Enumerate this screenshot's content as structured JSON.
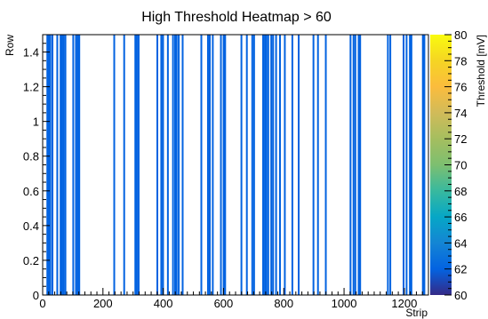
{
  "chart_data": {
    "type": "heatmap",
    "title": "High Threshold Heatmap > 60",
    "xlabel": "Strip",
    "ylabel": "Row",
    "zlabel": "Threshold [mV]",
    "xlim": [
      0,
      1280
    ],
    "ylim": [
      0,
      1.5
    ],
    "zlim": [
      60,
      80
    ],
    "x_ticks": [
      0,
      200,
      400,
      600,
      800,
      1000,
      1200
    ],
    "y_ticks": [
      0,
      0.2,
      0.4,
      0.6,
      0.8,
      1,
      1.2,
      1.4
    ],
    "z_ticks": [
      60,
      62,
      64,
      66,
      68,
      70,
      72,
      74,
      76,
      78,
      80
    ],
    "row_range": [
      0,
      1.5
    ],
    "cells": [
      {
        "strip": 14,
        "value": 62
      },
      {
        "strip": 19,
        "value": 62
      },
      {
        "strip": 24,
        "value": 62
      },
      {
        "strip": 31,
        "value": 62
      },
      {
        "strip": 47,
        "value": 62
      },
      {
        "strip": 58,
        "value": 62
      },
      {
        "strip": 63,
        "value": 62
      },
      {
        "strip": 68,
        "value": 62
      },
      {
        "strip": 74,
        "value": 62
      },
      {
        "strip": 100,
        "value": 62
      },
      {
        "strip": 109,
        "value": 62
      },
      {
        "strip": 115,
        "value": 62
      },
      {
        "strip": 120,
        "value": 62
      },
      {
        "strip": 236,
        "value": 62
      },
      {
        "strip": 269,
        "value": 62
      },
      {
        "strip": 306,
        "value": 62
      },
      {
        "strip": 311,
        "value": 62
      },
      {
        "strip": 317,
        "value": 62
      },
      {
        "strip": 379,
        "value": 62
      },
      {
        "strip": 392,
        "value": 62
      },
      {
        "strip": 398,
        "value": 62
      },
      {
        "strip": 414,
        "value": 62
      },
      {
        "strip": 431,
        "value": 62
      },
      {
        "strip": 438,
        "value": 62
      },
      {
        "strip": 443,
        "value": 62
      },
      {
        "strip": 450,
        "value": 62
      },
      {
        "strip": 463,
        "value": 62
      },
      {
        "strip": 525,
        "value": 62
      },
      {
        "strip": 547,
        "value": 62
      },
      {
        "strip": 553,
        "value": 62
      },
      {
        "strip": 563,
        "value": 62
      },
      {
        "strip": 590,
        "value": 62
      },
      {
        "strip": 599,
        "value": 62
      },
      {
        "strip": 604,
        "value": 62
      },
      {
        "strip": 658,
        "value": 62
      },
      {
        "strip": 676,
        "value": 62
      },
      {
        "strip": 694,
        "value": 62
      },
      {
        "strip": 700,
        "value": 62
      },
      {
        "strip": 730,
        "value": 62
      },
      {
        "strip": 736,
        "value": 62
      },
      {
        "strip": 741,
        "value": 62
      },
      {
        "strip": 747,
        "value": 62
      },
      {
        "strip": 757,
        "value": 62
      },
      {
        "strip": 763,
        "value": 62
      },
      {
        "strip": 773,
        "value": 62
      },
      {
        "strip": 786,
        "value": 62
      },
      {
        "strip": 802,
        "value": 62
      },
      {
        "strip": 827,
        "value": 62
      },
      {
        "strip": 848,
        "value": 62
      },
      {
        "strip": 897,
        "value": 62
      },
      {
        "strip": 912,
        "value": 62
      },
      {
        "strip": 938,
        "value": 62
      },
      {
        "strip": 1020,
        "value": 62
      },
      {
        "strip": 1030,
        "value": 62
      },
      {
        "strip": 1036,
        "value": 62
      },
      {
        "strip": 1047,
        "value": 62
      },
      {
        "strip": 1052,
        "value": 62
      },
      {
        "strip": 1144,
        "value": 62
      },
      {
        "strip": 1152,
        "value": 62
      },
      {
        "strip": 1196,
        "value": 62
      },
      {
        "strip": 1206,
        "value": 62
      },
      {
        "strip": 1217,
        "value": 62
      },
      {
        "strip": 1222,
        "value": 62
      },
      {
        "strip": 1260,
        "value": 62
      },
      {
        "strip": 1265,
        "value": 62
      }
    ]
  }
}
